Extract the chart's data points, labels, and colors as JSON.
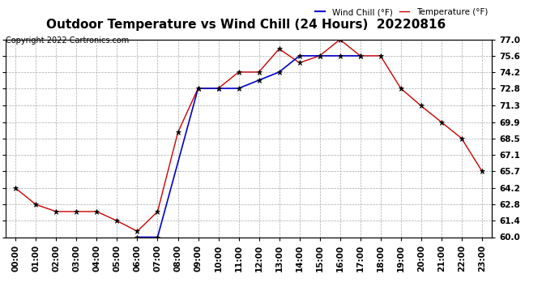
{
  "title": "Outdoor Temperature vs Wind Chill (24 Hours)  20220816",
  "copyright": "Copyright 2022 Cartronics.com",
  "legend_wind": "Wind Chill (°F)",
  "legend_temp": "Temperature (°F)",
  "x_labels": [
    "00:00",
    "01:00",
    "02:00",
    "03:00",
    "04:00",
    "05:00",
    "06:00",
    "07:00",
    "08:00",
    "09:00",
    "10:00",
    "11:00",
    "12:00",
    "13:00",
    "14:00",
    "15:00",
    "16:00",
    "17:00",
    "18:00",
    "19:00",
    "20:00",
    "21:00",
    "22:00",
    "23:00"
  ],
  "temperature": [
    64.2,
    62.8,
    62.2,
    62.2,
    62.2,
    61.4,
    60.5,
    62.2,
    69.0,
    72.8,
    72.8,
    74.2,
    74.2,
    76.2,
    75.0,
    75.6,
    77.0,
    75.6,
    75.6,
    72.8,
    71.3,
    69.9,
    68.5,
    65.7
  ],
  "wind_chill": [
    null,
    null,
    null,
    null,
    null,
    null,
    60.0,
    60.0,
    null,
    72.8,
    72.8,
    72.8,
    73.5,
    74.2,
    75.6,
    75.6,
    75.6,
    75.6,
    null,
    null,
    null,
    null,
    null,
    null
  ],
  "temp_color": "#cc0000",
  "wind_color": "#0000cc",
  "bg_color": "#ffffff",
  "grid_color": "#aaaaaa",
  "ylim_min": 60.0,
  "ylim_max": 77.0,
  "yticks": [
    60.0,
    61.4,
    62.8,
    64.2,
    65.7,
    67.1,
    68.5,
    69.9,
    71.3,
    72.8,
    74.2,
    75.6,
    77.0
  ],
  "title_fontsize": 11,
  "label_fontsize": 7.5,
  "copyright_fontsize": 7
}
